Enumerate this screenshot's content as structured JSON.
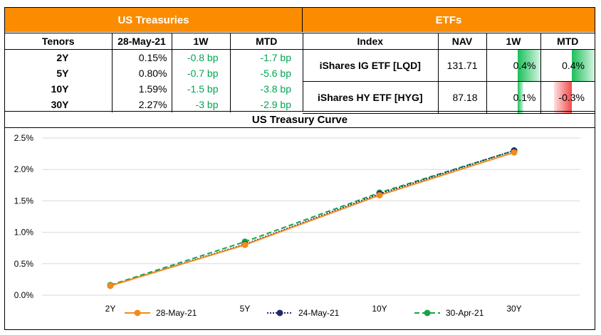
{
  "treasuries": {
    "title": "US Treasuries",
    "headers": [
      "Tenors",
      "28-May-21",
      "1W",
      "MTD"
    ],
    "rows": [
      {
        "tenor": "2Y",
        "yield": "0.15%",
        "w1": "-0.8 bp",
        "mtd": "-1.7 bp"
      },
      {
        "tenor": "5Y",
        "yield": "0.80%",
        "w1": "-0.7 bp",
        "mtd": "-5.6 bp"
      },
      {
        "tenor": "10Y",
        "yield": "1.59%",
        "w1": "-1.5 bp",
        "mtd": "-3.8 bp"
      },
      {
        "tenor": "30Y",
        "yield": "2.27%",
        "w1": "-3 bp",
        "mtd": "-2.9 bp"
      }
    ]
  },
  "etfs": {
    "title": "ETFs",
    "headers": [
      "Index",
      "NAV",
      "1W",
      "MTD"
    ],
    "rows": [
      {
        "index": "iShares IG ETF [LQD]",
        "nav": "131.71",
        "w1": "0.4%",
        "mtd": "0.4%",
        "w1_value": 0.4,
        "mtd_value": 0.4
      },
      {
        "index": "iShares HY ETF [HYG]",
        "nav": "87.18",
        "w1": "0.1%",
        "mtd": "-0.3%",
        "w1_value": 0.1,
        "mtd_value": -0.3
      }
    ],
    "colors": {
      "positive": "#1bbf5a",
      "negative": "#f24b4b"
    }
  },
  "chart_data": {
    "type": "line",
    "title": "US Treasury Curve",
    "categories": [
      "2Y",
      "5Y",
      "10Y",
      "30Y"
    ],
    "ylim": [
      0,
      2.5
    ],
    "yticks": [
      "0.0%",
      "0.5%",
      "1.0%",
      "1.5%",
      "2.0%",
      "2.5%"
    ],
    "grid": true,
    "legend_position": "bottom",
    "series": [
      {
        "name": "28-May-21",
        "values": [
          0.15,
          0.8,
          1.59,
          2.27
        ],
        "color": "#f28a1e",
        "dash": "solid"
      },
      {
        "name": "24-May-21",
        "values": [
          0.15,
          0.81,
          1.61,
          2.3
        ],
        "color": "#1f2a6b",
        "dash": "dotted"
      },
      {
        "name": "30-Apr-21",
        "values": [
          0.16,
          0.85,
          1.63,
          2.3
        ],
        "color": "#16a34a",
        "dash": "dashed"
      }
    ]
  }
}
